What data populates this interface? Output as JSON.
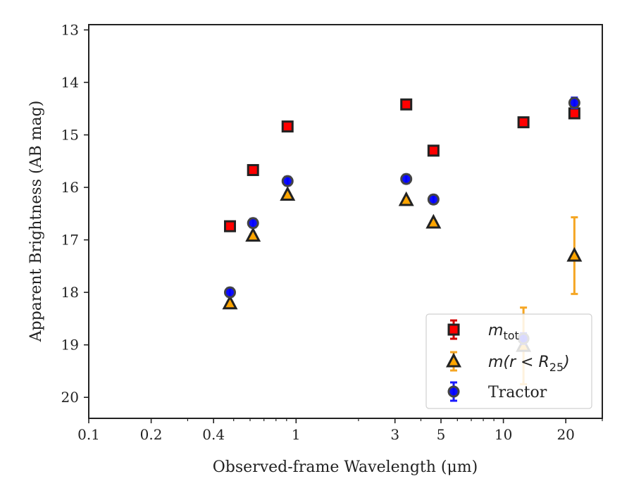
{
  "chart_data": {
    "type": "scatter",
    "xlabel": "Observed-frame Wavelength (μm)",
    "ylabel": "Apparent Brightness (AB mag)",
    "xscale": "log",
    "xlim": [
      0.1,
      30
    ],
    "ylim": [
      20.4,
      12.9
    ],
    "y_inverted": true,
    "xticks": [
      {
        "value": 0.1,
        "label": "0.1"
      },
      {
        "value": 0.2,
        "label": "0.2"
      },
      {
        "value": 0.4,
        "label": "0.4"
      },
      {
        "value": 1,
        "label": "1"
      },
      {
        "value": 3,
        "label": "3"
      },
      {
        "value": 5,
        "label": "5"
      },
      {
        "value": 10,
        "label": "10"
      },
      {
        "value": 20,
        "label": "20"
      }
    ],
    "yticks": [
      13,
      14,
      15,
      16,
      17,
      18,
      19,
      20
    ],
    "grid": false,
    "legend_position": "lower-right",
    "series": [
      {
        "name": "m_tot",
        "marker": "square",
        "color": "#ff0000",
        "edge_color": "#222222",
        "error_color": "#d40000",
        "points": [
          {
            "x": 0.48,
            "y": 16.74,
            "err": 0.03
          },
          {
            "x": 0.62,
            "y": 15.67,
            "err": 0.03
          },
          {
            "x": 0.91,
            "y": 14.84,
            "err": 0.03
          },
          {
            "x": 3.4,
            "y": 14.42,
            "err": 0.03
          },
          {
            "x": 4.6,
            "y": 15.3,
            "err": 0.03
          },
          {
            "x": 12.5,
            "y": 14.76,
            "err": 0.03
          },
          {
            "x": 22.0,
            "y": 14.59,
            "err": 0.03
          }
        ]
      },
      {
        "name": "m(r<R25)",
        "marker": "triangle",
        "color": "#ffa500",
        "edge_color": "#222222",
        "error_color": "#f5a623",
        "points": [
          {
            "x": 0.48,
            "y": 18.21,
            "err": 0.03
          },
          {
            "x": 0.62,
            "y": 16.92,
            "err": 0.03
          },
          {
            "x": 0.91,
            "y": 16.14,
            "err": 0.03
          },
          {
            "x": 3.4,
            "y": 16.24,
            "err": 0.03
          },
          {
            "x": 4.6,
            "y": 16.67,
            "err": 0.03
          },
          {
            "x": 12.5,
            "y": 19.02,
            "err": 0.73
          },
          {
            "x": 22.0,
            "y": 17.3,
            "err": 0.73
          }
        ]
      },
      {
        "name": "Tractor",
        "marker": "circle",
        "color": "#0000ff",
        "edge_color": "#444444",
        "error_color": "#1a1aff",
        "points": [
          {
            "x": 0.48,
            "y": 18.0,
            "err": 0.08
          },
          {
            "x": 0.62,
            "y": 16.68,
            "err": 0.08
          },
          {
            "x": 0.91,
            "y": 15.88,
            "err": 0.08
          },
          {
            "x": 3.4,
            "y": 15.84,
            "err": 0.08
          },
          {
            "x": 4.6,
            "y": 16.23,
            "err": 0.08
          },
          {
            "x": 12.5,
            "y": 18.88,
            "err": 0.1
          },
          {
            "x": 22.0,
            "y": 14.39,
            "err": 0.1
          }
        ]
      }
    ],
    "legend": {
      "entries": [
        {
          "series": "m_tot",
          "label_main": "m",
          "label_sub": "tot"
        },
        {
          "series": "m(r<R25)",
          "label_main": "m(r < R",
          "label_sub": "25",
          "label_tail": ")"
        },
        {
          "series": "Tractor",
          "label_main": "Tractor"
        }
      ]
    }
  }
}
